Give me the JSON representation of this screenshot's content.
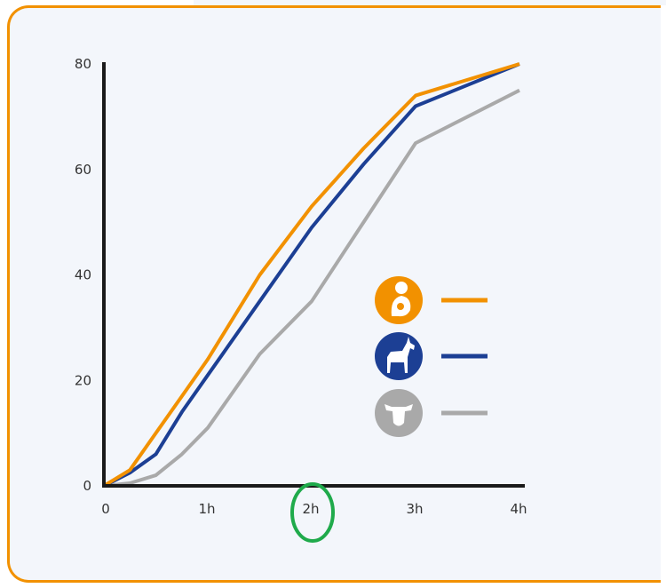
{
  "chart_data": {
    "type": "line",
    "title": "",
    "xlabel": "",
    "ylabel": "",
    "x": [
      0,
      0.25,
      0.5,
      0.75,
      1,
      1.5,
      2,
      2.5,
      3,
      4
    ],
    "x_ticks": [
      {
        "value": 0,
        "label": "0"
      },
      {
        "value": 1,
        "label": "1h"
      },
      {
        "value": 2,
        "label": "2h"
      },
      {
        "value": 3,
        "label": "3h"
      },
      {
        "value": 4,
        "label": "4h"
      }
    ],
    "y_ticks": [
      {
        "value": 0,
        "label": "0"
      },
      {
        "value": 20,
        "label": "20"
      },
      {
        "value": 40,
        "label": "40"
      },
      {
        "value": 60,
        "label": "60"
      },
      {
        "value": 80,
        "label": "80"
      }
    ],
    "xlim": [
      0,
      4
    ],
    "ylim": [
      0,
      80
    ],
    "grid": false,
    "legend_position": "right",
    "highlight": {
      "x": 2,
      "shape": "circle",
      "color": "#1faa4b"
    },
    "series": [
      {
        "icon": "breastfeeding-icon",
        "color": "#f29100",
        "values": [
          0,
          3,
          10,
          17,
          24,
          40,
          53,
          64,
          74,
          80
        ]
      },
      {
        "icon": "goat-icon",
        "color": "#1c3f94",
        "values": [
          0,
          2.5,
          6,
          14,
          21,
          35,
          49,
          61,
          72,
          80
        ]
      },
      {
        "icon": "cow-icon",
        "color": "#a9a9a9",
        "values": [
          0,
          0.5,
          2,
          6,
          11,
          25,
          35,
          50,
          65,
          75
        ]
      }
    ]
  }
}
